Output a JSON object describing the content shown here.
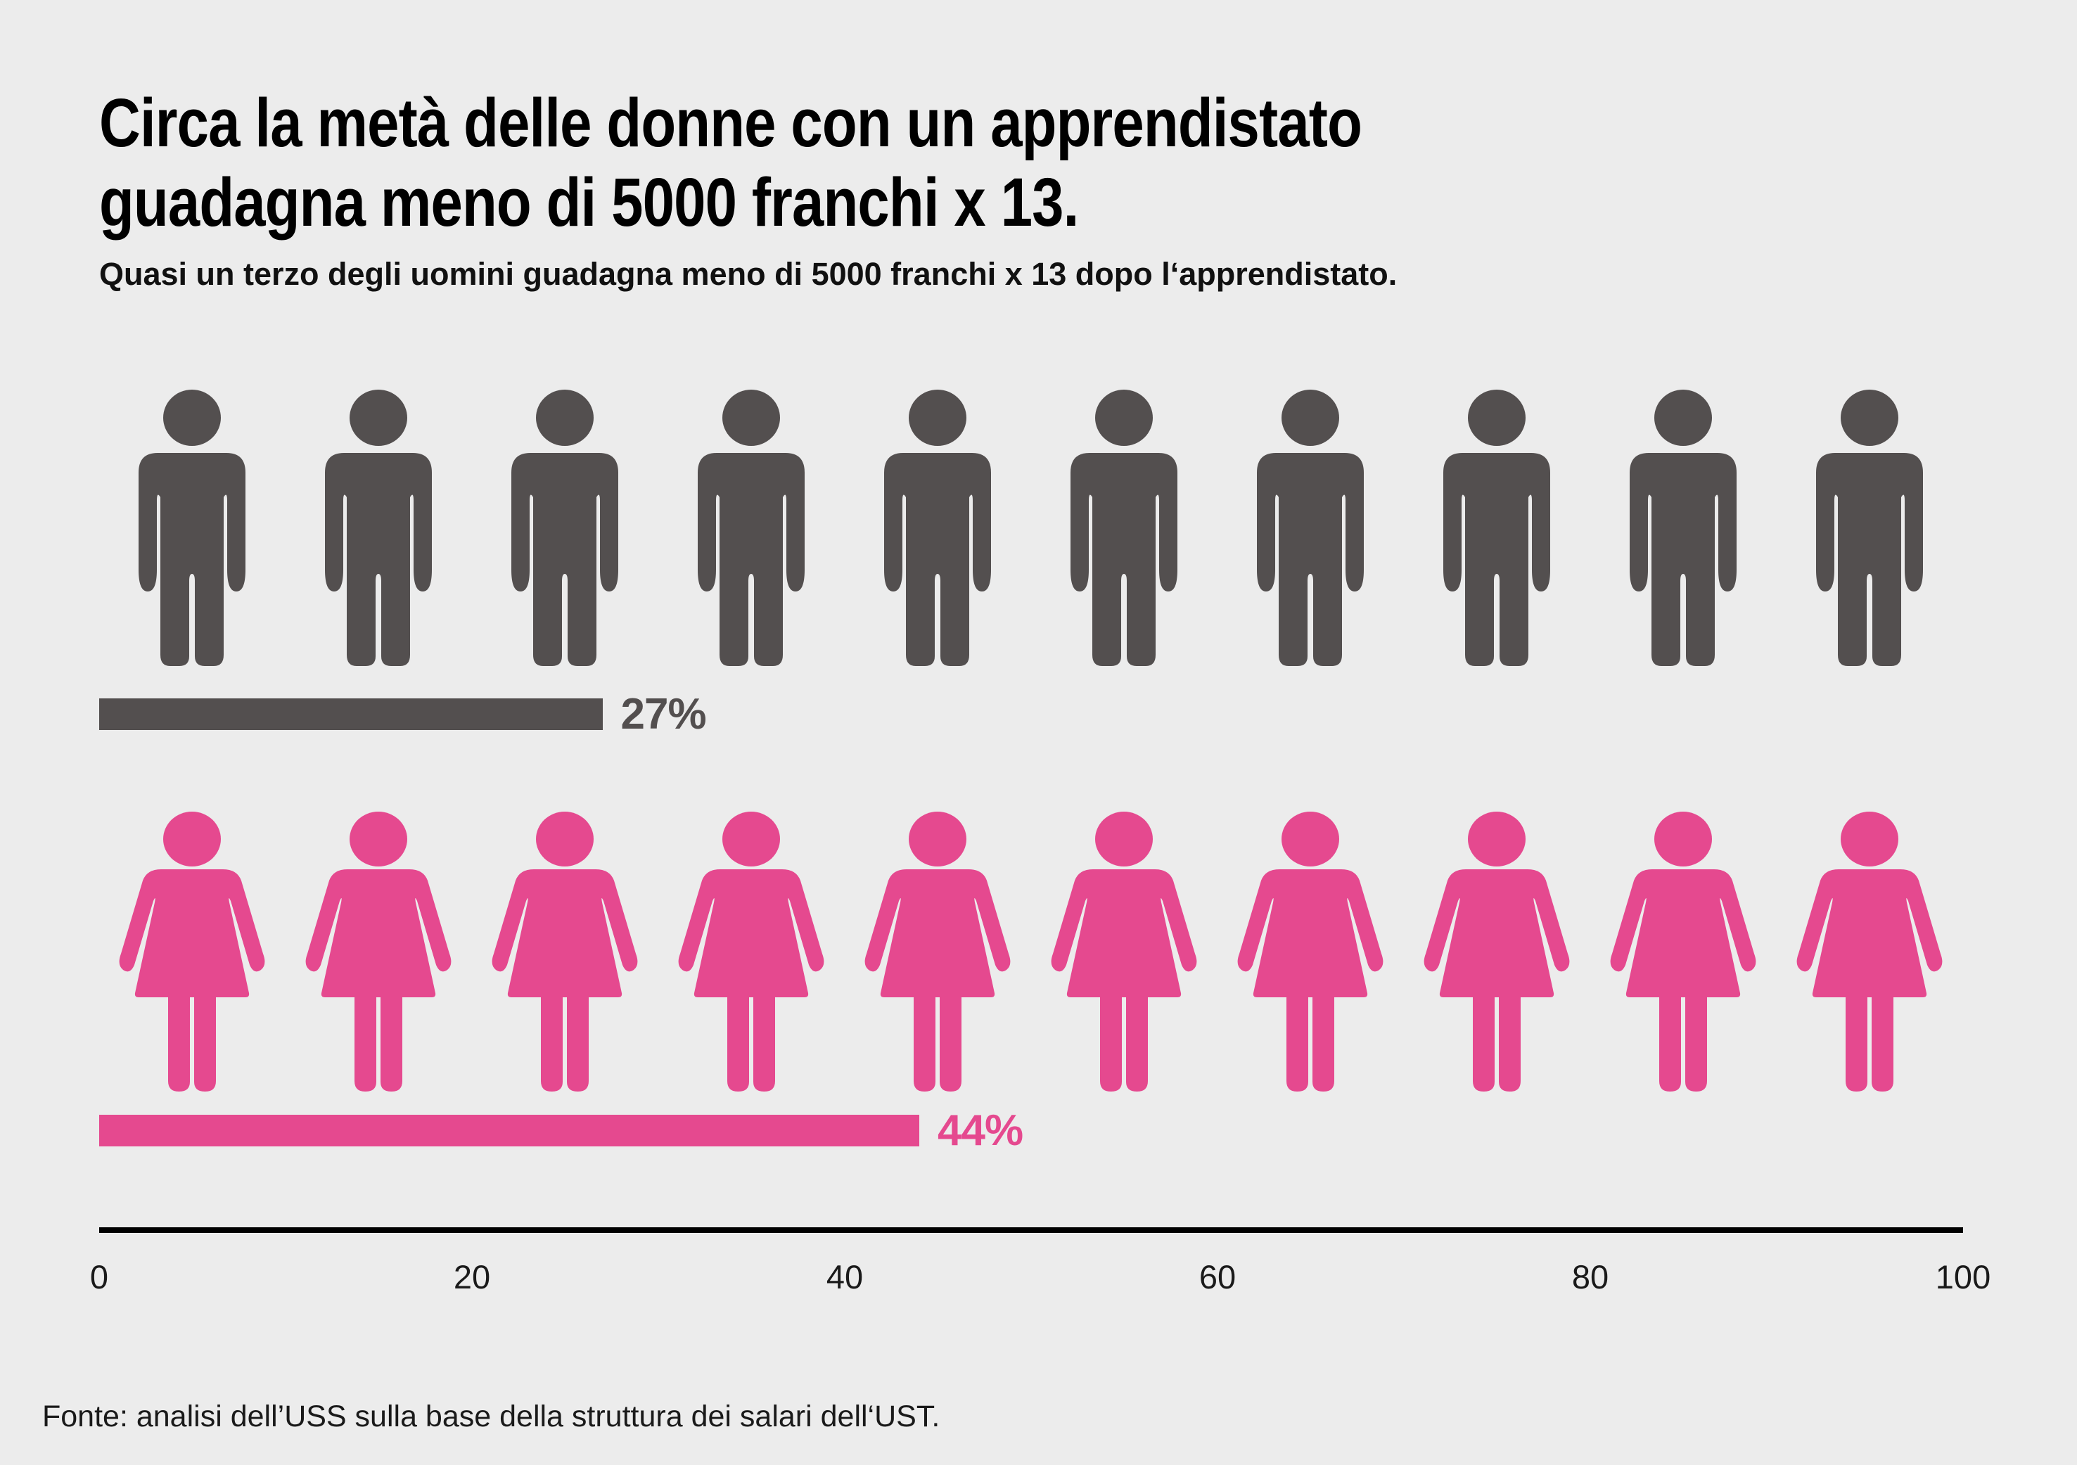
{
  "title": {
    "line1": "Circa la metà delle donne con un apprendistato",
    "line2": "guadagna meno di 5000 franchi x 13."
  },
  "subtitle": "Quasi un terzo degli uomini guadagna meno di 5000 franchi x 13 dopo l‘apprendistato.",
  "source": "Fonte: analisi dell’USS sulla base della struttura dei salari dell‘UST.",
  "colors": {
    "background": "#ececec",
    "male": "#534f4f",
    "female": "#e5498f",
    "empty": "#ffffff",
    "axis": "#000000"
  },
  "chart_data": {
    "type": "bar",
    "subtype": "pictogram",
    "icons_per_row": 10,
    "units_per_icon": 10,
    "axis": {
      "min": 0,
      "max": 100,
      "ticks": [
        0,
        20,
        40,
        60,
        80,
        100
      ]
    },
    "categories": [
      "uomini",
      "donne"
    ],
    "series": [
      {
        "name": "uomini",
        "value": 27,
        "label": "27%",
        "color": "#534f4f",
        "icon": "man"
      },
      {
        "name": "donne",
        "value": 44,
        "label": "44%",
        "color": "#e5498f",
        "icon": "woman"
      }
    ],
    "title": "Circa la metà delle donne con un apprendistato guadagna meno di 5000 franchi x 13.",
    "xlabel": "",
    "ylabel": "",
    "legend": "none",
    "grid": false
  }
}
